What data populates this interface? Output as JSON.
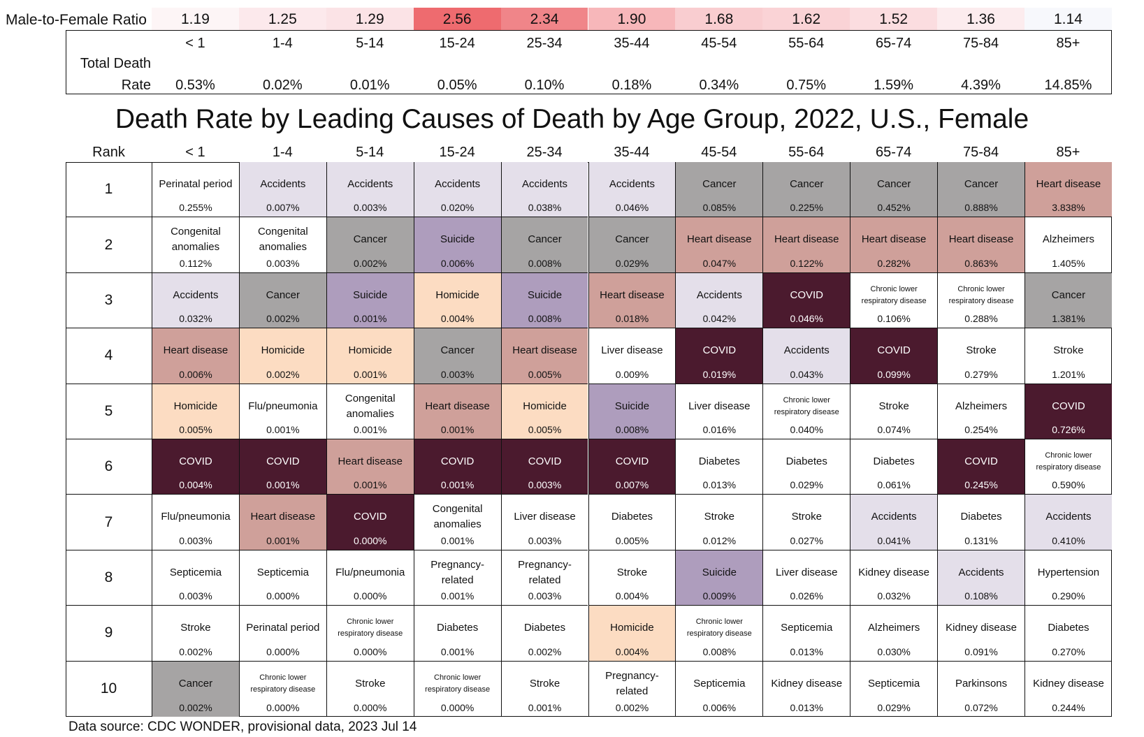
{
  "ratio_label": "Male-to-Female Ratio",
  "summary_label_line1": "Total Death",
  "summary_label_line2": "Rate",
  "title": "Death Rate by Leading Causes of Death by Age Group, 2022, U.S., Female",
  "rank_header": "Rank",
  "source": "Data source: CDC WONDER, provisional data, 2023 Jul 14",
  "age_groups": [
    "< 1",
    "1-4",
    "5-14",
    "15-24",
    "25-34",
    "35-44",
    "45-54",
    "55-64",
    "65-74",
    "75-84",
    "85+"
  ],
  "male_to_female_ratio": [
    "1.19",
    "1.25",
    "1.29",
    "2.56",
    "2.34",
    "1.90",
    "1.68",
    "1.62",
    "1.52",
    "1.36",
    "1.14"
  ],
  "ratio_colors": [
    "#fdf5f6",
    "#fce9ec",
    "#fbe3e6",
    "#ee6b6f",
    "#f08589",
    "#f7b7ba",
    "#f9cdd0",
    "#fad3d6",
    "#fbdde0",
    "#fcecee",
    "#f7f8fc"
  ],
  "total_death_rate": [
    "0.53%",
    "0.02%",
    "0.01%",
    "0.05%",
    "0.10%",
    "0.18%",
    "0.34%",
    "0.75%",
    "1.59%",
    "4.39%",
    "14.85%"
  ],
  "cause_colors": {
    "Accidents": "#e4dfea",
    "Cancer": "#a6a4a4",
    "Heart disease": "#cfa09a",
    "Suicide": "#ae9dbd",
    "Homicide": "#fcdcc2",
    "COVID": "#4b1a2e"
  },
  "chart_data": {
    "type": "table",
    "title": "Death Rate by Leading Causes of Death by Age Group, 2022, U.S., Female",
    "columns": [
      "< 1",
      "1-4",
      "5-14",
      "15-24",
      "25-34",
      "35-44",
      "45-54",
      "55-64",
      "65-74",
      "75-84",
      "85+"
    ],
    "ranks": [
      "1",
      "2",
      "3",
      "4",
      "5",
      "6",
      "7",
      "8",
      "9",
      "10"
    ],
    "cells": [
      [
        [
          "Perinatal period",
          "0.255%"
        ],
        [
          "Accidents",
          "0.007%"
        ],
        [
          "Accidents",
          "0.003%"
        ],
        [
          "Accidents",
          "0.020%"
        ],
        [
          "Accidents",
          "0.038%"
        ],
        [
          "Accidents",
          "0.046%"
        ],
        [
          "Cancer",
          "0.085%"
        ],
        [
          "Cancer",
          "0.225%"
        ],
        [
          "Cancer",
          "0.452%"
        ],
        [
          "Cancer",
          "0.888%"
        ],
        [
          "Heart disease",
          "3.838%"
        ]
      ],
      [
        [
          "Congenital anomalies",
          "0.112%"
        ],
        [
          "Congenital anomalies",
          "0.003%"
        ],
        [
          "Cancer",
          "0.002%"
        ],
        [
          "Suicide",
          "0.006%"
        ],
        [
          "Cancer",
          "0.008%"
        ],
        [
          "Cancer",
          "0.029%"
        ],
        [
          "Heart disease",
          "0.047%"
        ],
        [
          "Heart disease",
          "0.122%"
        ],
        [
          "Heart disease",
          "0.282%"
        ],
        [
          "Heart disease",
          "0.863%"
        ],
        [
          "Alzheimers",
          "1.405%"
        ]
      ],
      [
        [
          "Accidents",
          "0.032%"
        ],
        [
          "Cancer",
          "0.002%"
        ],
        [
          "Suicide",
          "0.001%"
        ],
        [
          "Homicide",
          "0.004%"
        ],
        [
          "Suicide",
          "0.008%"
        ],
        [
          "Heart disease",
          "0.018%"
        ],
        [
          "Accidents",
          "0.042%"
        ],
        [
          "COVID",
          "0.046%"
        ],
        [
          "Chronic lower respiratory disease",
          "0.106%"
        ],
        [
          "Chronic lower respiratory disease",
          "0.288%"
        ],
        [
          "Cancer",
          "1.381%"
        ]
      ],
      [
        [
          "Heart disease",
          "0.006%"
        ],
        [
          "Homicide",
          "0.002%"
        ],
        [
          "Homicide",
          "0.001%"
        ],
        [
          "Cancer",
          "0.003%"
        ],
        [
          "Heart disease",
          "0.005%"
        ],
        [
          "Liver disease",
          "0.009%"
        ],
        [
          "COVID",
          "0.019%"
        ],
        [
          "Accidents",
          "0.043%"
        ],
        [
          "COVID",
          "0.099%"
        ],
        [
          "Stroke",
          "0.279%"
        ],
        [
          "Stroke",
          "1.201%"
        ]
      ],
      [
        [
          "Homicide",
          "0.005%"
        ],
        [
          "Flu/pneumonia",
          "0.001%"
        ],
        [
          "Congenital anomalies",
          "0.001%"
        ],
        [
          "Heart disease",
          "0.001%"
        ],
        [
          "Homicide",
          "0.005%"
        ],
        [
          "Suicide",
          "0.008%"
        ],
        [
          "Liver disease",
          "0.016%"
        ],
        [
          "Chronic lower respiratory disease",
          "0.040%"
        ],
        [
          "Stroke",
          "0.074%"
        ],
        [
          "Alzheimers",
          "0.254%"
        ],
        [
          "COVID",
          "0.726%"
        ]
      ],
      [
        [
          "COVID",
          "0.004%"
        ],
        [
          "COVID",
          "0.001%"
        ],
        [
          "Heart disease",
          "0.001%"
        ],
        [
          "COVID",
          "0.001%"
        ],
        [
          "COVID",
          "0.003%"
        ],
        [
          "COVID",
          "0.007%"
        ],
        [
          "Diabetes",
          "0.013%"
        ],
        [
          "Diabetes",
          "0.029%"
        ],
        [
          "Diabetes",
          "0.061%"
        ],
        [
          "COVID",
          "0.245%"
        ],
        [
          "Chronic lower respiratory disease",
          "0.590%"
        ]
      ],
      [
        [
          "Flu/pneumonia",
          "0.003%"
        ],
        [
          "Heart disease",
          "0.001%"
        ],
        [
          "COVID",
          "0.000%"
        ],
        [
          "Congenital anomalies",
          "0.001%"
        ],
        [
          "Liver disease",
          "0.003%"
        ],
        [
          "Diabetes",
          "0.005%"
        ],
        [
          "Stroke",
          "0.012%"
        ],
        [
          "Stroke",
          "0.027%"
        ],
        [
          "Accidents",
          "0.041%"
        ],
        [
          "Diabetes",
          "0.131%"
        ],
        [
          "Accidents",
          "0.410%"
        ]
      ],
      [
        [
          "Septicemia",
          "0.003%"
        ],
        [
          "Septicemia",
          "0.000%"
        ],
        [
          "Flu/pneumonia",
          "0.000%"
        ],
        [
          "Pregnancy-related",
          "0.001%"
        ],
        [
          "Pregnancy-related",
          "0.003%"
        ],
        [
          "Stroke",
          "0.004%"
        ],
        [
          "Suicide",
          "0.009%"
        ],
        [
          "Liver disease",
          "0.026%"
        ],
        [
          "Kidney disease",
          "0.032%"
        ],
        [
          "Accidents",
          "0.108%"
        ],
        [
          "Hypertension",
          "0.290%"
        ]
      ],
      [
        [
          "Stroke",
          "0.002%"
        ],
        [
          "Perinatal period",
          "0.000%"
        ],
        [
          "Chronic lower respiratory disease",
          "0.000%"
        ],
        [
          "Diabetes",
          "0.001%"
        ],
        [
          "Diabetes",
          "0.002%"
        ],
        [
          "Homicide",
          "0.004%"
        ],
        [
          "Chronic lower respiratory disease",
          "0.008%"
        ],
        [
          "Septicemia",
          "0.013%"
        ],
        [
          "Alzheimers",
          "0.030%"
        ],
        [
          "Kidney disease",
          "0.091%"
        ],
        [
          "Diabetes",
          "0.270%"
        ]
      ],
      [
        [
          "Cancer",
          "0.002%"
        ],
        [
          "Chronic lower respiratory disease",
          "0.000%"
        ],
        [
          "Stroke",
          "0.000%"
        ],
        [
          "Chronic lower respiratory disease",
          "0.000%"
        ],
        [
          "Stroke",
          "0.001%"
        ],
        [
          "Pregnancy-related",
          "0.002%"
        ],
        [
          "Septicemia",
          "0.006%"
        ],
        [
          "Kidney disease",
          "0.013%"
        ],
        [
          "Septicemia",
          "0.029%"
        ],
        [
          "Parkinsons",
          "0.072%"
        ],
        [
          "Kidney disease",
          "0.244%"
        ]
      ]
    ]
  }
}
